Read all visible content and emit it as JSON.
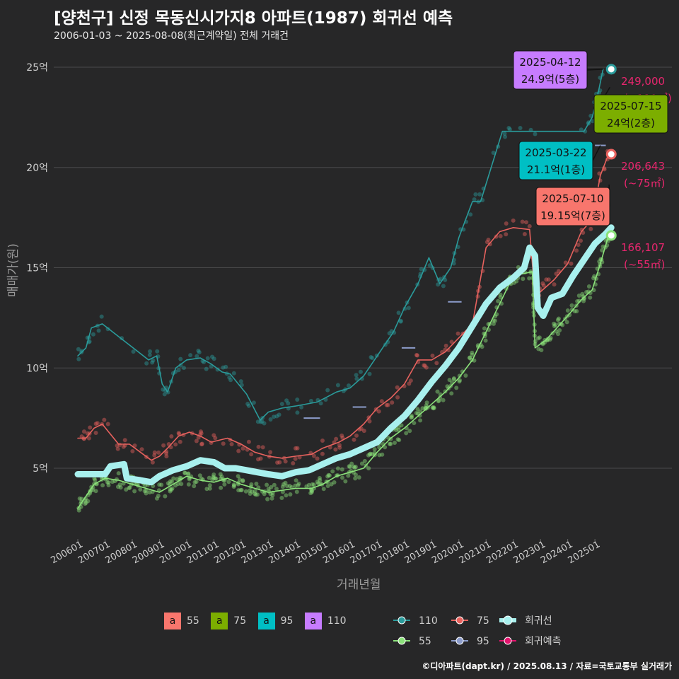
{
  "header": {
    "title": "[양천구] 신정 목동신시가지8 아파트(1987) 회귀선 예측",
    "subtitle": "2006-01-03 ~ 2025-08-08(최근계약일) 전체 거래건"
  },
  "footer": "©디아파트(dapt.kr) / 2025.08.13 / 자료=국토교통부 실거래가",
  "colors": {
    "area55": "#F8766D",
    "area75": "#7CAE00",
    "area95": "#00BFC4",
    "area110": "#C77CFF",
    "line110": "#2A9B9B",
    "line75": "#E8625E",
    "line55": "#8BE27A",
    "line95": "#8C9CCB",
    "regression": "#A8F0EE",
    "prediction": "#E3146E",
    "pred_text": "#E8266E"
  },
  "legend": {
    "area_boxes": [
      {
        "key": "a",
        "label": "55",
        "color": "#F8766D"
      },
      {
        "key": "a",
        "label": "75",
        "color": "#7CAE00"
      },
      {
        "key": "a",
        "label": "95",
        "color": "#00BFC4"
      },
      {
        "key": "a",
        "label": "110",
        "color": "#C77CFF"
      }
    ],
    "lines": [
      {
        "label": "110",
        "color": "#2A9B9B"
      },
      {
        "label": "75",
        "color": "#E8625E"
      },
      {
        "label": "회귀선",
        "color": "#A8F0EE"
      },
      {
        "label": "55",
        "color": "#8BE27A"
      },
      {
        "label": "95",
        "color": "#8C9CCB"
      },
      {
        "label": "회귀예측",
        "color": "#E3146E"
      }
    ]
  },
  "chart_data": {
    "type": "line",
    "xlabel": "거래년월",
    "ylabel": "매매가(원)",
    "xlim": [
      2006.0,
      2025.75
    ],
    "ylim": [
      0,
      25.5
    ],
    "yticks": [
      {
        "v": 5,
        "label": "5억"
      },
      {
        "v": 10,
        "label": "10억"
      },
      {
        "v": 15,
        "label": "15억"
      },
      {
        "v": 20,
        "label": "20억"
      },
      {
        "v": 25,
        "label": "25억"
      }
    ],
    "xticks": [
      "200601",
      "200701",
      "200801",
      "200901",
      "201001",
      "201101",
      "201201",
      "201301",
      "201401",
      "201501",
      "201601",
      "201701",
      "201801",
      "201901",
      "202001",
      "202101",
      "202201",
      "202301",
      "202401",
      "202501"
    ],
    "grid": true,
    "series": [
      {
        "name": "110",
        "color": "#2A9B9B",
        "points": [
          [
            2006.0,
            10.6
          ],
          [
            2006.3,
            11.0
          ],
          [
            2006.5,
            12.0
          ],
          [
            2006.9,
            12.2
          ],
          [
            2008.6,
            10.4
          ],
          [
            2008.9,
            10.6
          ],
          [
            2009.1,
            9.2
          ],
          [
            2009.3,
            8.8
          ],
          [
            2009.6,
            10.0
          ],
          [
            2010.0,
            10.4
          ],
          [
            2010.5,
            10.5
          ],
          [
            2010.9,
            10.2
          ],
          [
            2011.3,
            9.8
          ],
          [
            2011.6,
            9.7
          ],
          [
            2012.2,
            8.7
          ],
          [
            2012.7,
            7.4
          ],
          [
            2013.0,
            7.8
          ],
          [
            2013.5,
            8.0
          ],
          [
            2014.0,
            8.1
          ],
          [
            2014.8,
            8.3
          ],
          [
            2015.5,
            8.8
          ],
          [
            2016.0,
            9.0
          ],
          [
            2016.5,
            9.6
          ],
          [
            2017.0,
            10.6
          ],
          [
            2017.6,
            11.8
          ],
          [
            2018.0,
            13.0
          ],
          [
            2018.5,
            14.2
          ],
          [
            2018.9,
            15.5
          ],
          [
            2019.3,
            14.2
          ],
          [
            2019.7,
            15.0
          ],
          [
            2020.0,
            16.5
          ],
          [
            2020.5,
            18.3
          ],
          [
            2020.8,
            18.3
          ],
          [
            2021.6,
            21.8
          ],
          [
            2021.9,
            21.8
          ],
          [
            2024.6,
            21.8
          ],
          [
            2024.9,
            22.5
          ],
          [
            2025.1,
            23.6
          ],
          [
            2025.3,
            24.9
          ]
        ]
      },
      {
        "name": "75",
        "color": "#E8625E",
        "points": [
          [
            2006.0,
            6.5
          ],
          [
            2006.3,
            6.5
          ],
          [
            2006.6,
            7.0
          ],
          [
            2006.9,
            7.2
          ],
          [
            2007.5,
            6.2
          ],
          [
            2007.9,
            6.2
          ],
          [
            2008.7,
            5.4
          ],
          [
            2009.0,
            5.6
          ],
          [
            2009.3,
            6.0
          ],
          [
            2009.7,
            6.6
          ],
          [
            2010.1,
            6.8
          ],
          [
            2010.5,
            6.6
          ],
          [
            2010.9,
            6.3
          ],
          [
            2011.5,
            6.5
          ],
          [
            2012.0,
            6.2
          ],
          [
            2012.5,
            5.8
          ],
          [
            2013.0,
            5.6
          ],
          [
            2013.5,
            5.5
          ],
          [
            2014.0,
            5.6
          ],
          [
            2014.6,
            5.7
          ],
          [
            2015.0,
            6.0
          ],
          [
            2015.6,
            6.3
          ],
          [
            2016.0,
            6.6
          ],
          [
            2016.5,
            7.2
          ],
          [
            2017.0,
            8.0
          ],
          [
            2017.5,
            8.5
          ],
          [
            2018.0,
            9.2
          ],
          [
            2018.5,
            10.4
          ],
          [
            2019.0,
            10.4
          ],
          [
            2019.5,
            10.8
          ],
          [
            2020.0,
            11.5
          ],
          [
            2020.5,
            12.2
          ],
          [
            2021.0,
            16.0
          ],
          [
            2021.5,
            16.8
          ],
          [
            2022.0,
            17.0
          ],
          [
            2022.6,
            16.9
          ],
          [
            2022.8,
            13.5
          ],
          [
            2023.0,
            13.8
          ],
          [
            2023.5,
            14.4
          ],
          [
            2024.0,
            15.2
          ],
          [
            2024.5,
            16.8
          ],
          [
            2024.9,
            17.4
          ],
          [
            2025.2,
            19.6
          ],
          [
            2025.5,
            20.66
          ]
        ]
      },
      {
        "name": "55",
        "color": "#8BE27A",
        "points": [
          [
            2006.0,
            3.0
          ],
          [
            2006.3,
            3.6
          ],
          [
            2006.6,
            4.2
          ],
          [
            2007.0,
            4.5
          ],
          [
            2007.5,
            4.4
          ],
          [
            2008.0,
            4.2
          ],
          [
            2008.5,
            4.0
          ],
          [
            2009.0,
            3.8
          ],
          [
            2009.5,
            4.2
          ],
          [
            2010.0,
            4.6
          ],
          [
            2010.5,
            4.4
          ],
          [
            2011.0,
            4.3
          ],
          [
            2011.5,
            4.5
          ],
          [
            2012.0,
            4.2
          ],
          [
            2012.5,
            4.0
          ],
          [
            2013.0,
            3.8
          ],
          [
            2013.5,
            3.9
          ],
          [
            2014.0,
            4.0
          ],
          [
            2014.6,
            4.0
          ],
          [
            2015.0,
            4.2
          ],
          [
            2015.5,
            4.6
          ],
          [
            2016.0,
            4.8
          ],
          [
            2016.5,
            5.0
          ],
          [
            2017.0,
            5.8
          ],
          [
            2017.5,
            6.5
          ],
          [
            2018.0,
            7.0
          ],
          [
            2018.5,
            7.6
          ],
          [
            2019.0,
            8.2
          ],
          [
            2019.5,
            8.8
          ],
          [
            2020.0,
            9.5
          ],
          [
            2020.5,
            10.4
          ],
          [
            2021.0,
            11.8
          ],
          [
            2021.5,
            13.2
          ],
          [
            2022.0,
            14.6
          ],
          [
            2022.7,
            14.8
          ],
          [
            2022.8,
            11.0
          ],
          [
            2023.2,
            11.4
          ],
          [
            2023.6,
            12.0
          ],
          [
            2024.0,
            12.6
          ],
          [
            2024.5,
            13.4
          ],
          [
            2024.9,
            13.9
          ],
          [
            2025.2,
            15.2
          ],
          [
            2025.5,
            16.61
          ]
        ]
      },
      {
        "name": "95",
        "color": "#8C9CCB",
        "points": []
      },
      {
        "name": "회귀선",
        "color": "#A8F0EE",
        "points": [
          [
            2006.0,
            4.7
          ],
          [
            2006.5,
            4.7
          ],
          [
            2007.0,
            4.7
          ],
          [
            2007.2,
            5.1
          ],
          [
            2007.7,
            5.2
          ],
          [
            2007.8,
            4.5
          ],
          [
            2008.3,
            4.4
          ],
          [
            2008.7,
            4.3
          ],
          [
            2009.0,
            4.6
          ],
          [
            2009.5,
            4.9
          ],
          [
            2010.0,
            5.1
          ],
          [
            2010.5,
            5.4
          ],
          [
            2011.0,
            5.3
          ],
          [
            2011.4,
            5.0
          ],
          [
            2011.8,
            5.0
          ],
          [
            2012.2,
            4.9
          ],
          [
            2012.6,
            4.8
          ],
          [
            2013.0,
            4.7
          ],
          [
            2013.5,
            4.6
          ],
          [
            2014.0,
            4.8
          ],
          [
            2014.5,
            4.9
          ],
          [
            2015.0,
            5.2
          ],
          [
            2015.5,
            5.5
          ],
          [
            2016.0,
            5.7
          ],
          [
            2016.5,
            6.0
          ],
          [
            2017.0,
            6.3
          ],
          [
            2017.5,
            7.0
          ],
          [
            2018.0,
            7.6
          ],
          [
            2018.5,
            8.4
          ],
          [
            2019.0,
            9.3
          ],
          [
            2019.5,
            10.1
          ],
          [
            2020.0,
            11.0
          ],
          [
            2020.5,
            12.1
          ],
          [
            2021.0,
            13.2
          ],
          [
            2021.5,
            14.0
          ],
          [
            2022.0,
            14.5
          ],
          [
            2022.4,
            15.0
          ],
          [
            2022.6,
            16.0
          ],
          [
            2022.8,
            15.6
          ],
          [
            2022.9,
            13.0
          ],
          [
            2023.1,
            12.6
          ],
          [
            2023.4,
            13.5
          ],
          [
            2023.8,
            13.7
          ],
          [
            2024.2,
            14.6
          ],
          [
            2024.6,
            15.4
          ],
          [
            2025.0,
            16.2
          ],
          [
            2025.4,
            16.7
          ],
          [
            2025.6,
            17.0
          ]
        ]
      }
    ],
    "segments_95": [
      {
        "x": [
          2014.3,
          2014.9
        ],
        "y": 7.5
      },
      {
        "x": [
          2016.1,
          2016.6
        ],
        "y": 8.05
      },
      {
        "x": [
          2017.9,
          2018.4
        ],
        "y": 11.0
      },
      {
        "x": [
          2019.6,
          2020.1
        ],
        "y": 13.3
      },
      {
        "x": [
          2025.0,
          2025.4
        ],
        "y": 21.1
      }
    ],
    "end_markers": [
      {
        "series": "110",
        "x": 2025.6,
        "y": 24.9
      },
      {
        "series": "75",
        "x": 2025.6,
        "y": 20.66
      },
      {
        "series": "55",
        "x": 2025.6,
        "y": 16.61
      }
    ],
    "callouts": [
      {
        "date": "2025-04-12",
        "price": "24.9억(5층)",
        "color": "#C77CFF",
        "x": 2025.3,
        "y": 24.9
      },
      {
        "date": "2025-07-15",
        "price": "24억(2층)",
        "color": "#7CAE00",
        "x": 2025.55,
        "y": 24.0
      },
      {
        "date": "2025-03-22",
        "price": "21.1억(1층)",
        "color": "#00BFC4",
        "x": 2025.2,
        "y": 21.1
      },
      {
        "date": "2025-07-10",
        "price": "19.15억(7층)",
        "color": "#F8766D",
        "x": 2025.52,
        "y": 19.15
      }
    ],
    "predictions": [
      {
        "value": "249,000",
        "area": "(~110㎡)",
        "y": 24.9
      },
      {
        "value": "206,643",
        "area": "(~75㎡)",
        "y": 20.66
      },
      {
        "value": "166,107",
        "area": "(~55㎡)",
        "y": 16.61
      }
    ]
  }
}
